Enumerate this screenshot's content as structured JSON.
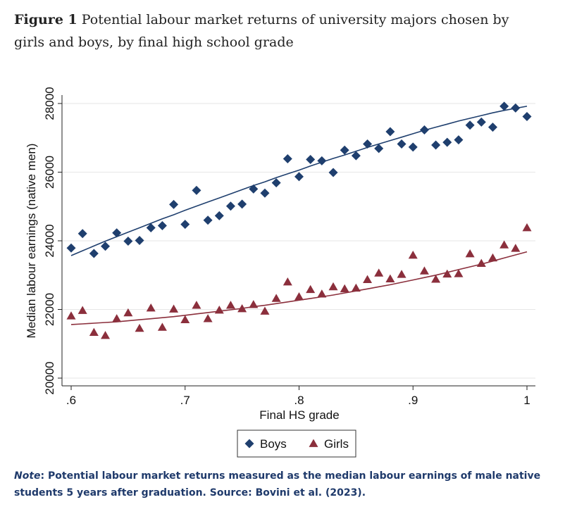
{
  "figure": {
    "label": "Figure 1",
    "caption": "Potential labour market returns of university majors chosen by girls and boys, by final high school grade"
  },
  "note": {
    "label": "Note",
    "text": ": Potential labour market returns measured as the median labour earnings of male native students 5 years after graduation. Source: Bovini et al. (2023)."
  },
  "chart_data": {
    "type": "scatter",
    "title": "",
    "xlabel": "Final HS grade",
    "ylabel": "Median labour earnings (native men)",
    "xlim": [
      0.6,
      1.0
    ],
    "ylim": [
      20000,
      28000
    ],
    "xticks": [
      ".6",
      ".7",
      ".8",
      ".9",
      "1"
    ],
    "yticks": [
      "20000",
      "22000",
      "24000",
      "26000",
      "28000"
    ],
    "grid": true,
    "legend_position": "bottom",
    "x": [
      0.6,
      0.61,
      0.62,
      0.63,
      0.64,
      0.65,
      0.66,
      0.67,
      0.68,
      0.69,
      0.7,
      0.71,
      0.72,
      0.73,
      0.74,
      0.75,
      0.76,
      0.77,
      0.78,
      0.79,
      0.8,
      0.81,
      0.82,
      0.83,
      0.84,
      0.85,
      0.86,
      0.87,
      0.88,
      0.89,
      0.9,
      0.91,
      0.92,
      0.93,
      0.94,
      0.95,
      0.96,
      0.97,
      0.98,
      0.99,
      1.0
    ],
    "series": [
      {
        "name": "Boys",
        "marker": "diamond",
        "color": "#1f3f6e",
        "values": [
          23790,
          24210,
          23630,
          23840,
          24230,
          23990,
          24010,
          24380,
          24440,
          25060,
          24480,
          25470,
          24600,
          24730,
          25010,
          25070,
          25510,
          25390,
          25690,
          26390,
          25870,
          26370,
          26330,
          25990,
          26640,
          26480,
          26820,
          26690,
          27180,
          26820,
          26730,
          27230,
          26790,
          26870,
          26940,
          27370,
          27460,
          27310,
          27920,
          27870,
          27620
        ],
        "fit": [
          23570,
          23710,
          23850,
          23990,
          24120,
          24250,
          24380,
          24510,
          24640,
          24760,
          24890,
          25010,
          25130,
          25250,
          25370,
          25490,
          25610,
          25720,
          25840,
          25950,
          26060,
          26180,
          26290,
          26400,
          26500,
          26610,
          26720,
          26820,
          26920,
          27020,
          27120,
          27220,
          27310,
          27400,
          27490,
          27570,
          27650,
          27730,
          27800,
          27860,
          27920
        ]
      },
      {
        "name": "Girls",
        "marker": "triangle",
        "color": "#8b2f3c",
        "values": [
          21810,
          21970,
          21330,
          21240,
          21730,
          21900,
          21450,
          22040,
          21480,
          22010,
          21700,
          22120,
          21730,
          21980,
          22120,
          22020,
          22140,
          21950,
          22320,
          22800,
          22370,
          22580,
          22450,
          22660,
          22600,
          22620,
          22870,
          23060,
          22890,
          23020,
          23580,
          23120,
          22880,
          23030,
          23040,
          23620,
          23340,
          23500,
          23880,
          23780,
          24380
        ],
        "fit": [
          21560,
          21580,
          21600,
          21620,
          21640,
          21670,
          21700,
          21730,
          21760,
          21790,
          21830,
          21870,
          21910,
          21950,
          21990,
          22030,
          22080,
          22120,
          22170,
          22220,
          22270,
          22320,
          22370,
          22420,
          22480,
          22540,
          22600,
          22660,
          22720,
          22790,
          22860,
          22930,
          23000,
          23080,
          23160,
          23240,
          23320,
          23410,
          23500,
          23590,
          23680
        ]
      }
    ]
  }
}
